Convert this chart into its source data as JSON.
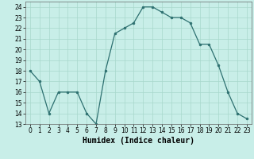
{
  "x": [
    0,
    1,
    2,
    3,
    4,
    5,
    6,
    7,
    8,
    9,
    10,
    11,
    12,
    13,
    14,
    15,
    16,
    17,
    18,
    19,
    20,
    21,
    22,
    23
  ],
  "y": [
    18,
    17,
    14,
    16,
    16,
    16,
    14,
    13,
    18,
    21.5,
    22,
    22.5,
    24,
    24,
    23.5,
    23,
    23,
    22.5,
    20.5,
    20.5,
    18.5,
    16,
    14,
    13.5
  ],
  "line_color": "#2d7070",
  "marker_color": "#2d7070",
  "bg_color": "#c8eee8",
  "grid_color": "#a8d8cc",
  "xlabel": "Humidex (Indice chaleur)",
  "xlim": [
    -0.5,
    23.5
  ],
  "ylim": [
    13,
    24.5
  ],
  "yticks": [
    13,
    14,
    15,
    16,
    17,
    18,
    19,
    20,
    21,
    22,
    23,
    24
  ],
  "xticks": [
    0,
    1,
    2,
    3,
    4,
    5,
    6,
    7,
    8,
    9,
    10,
    11,
    12,
    13,
    14,
    15,
    16,
    17,
    18,
    19,
    20,
    21,
    22,
    23
  ],
  "tick_fontsize": 5.5,
  "xlabel_fontsize": 7
}
